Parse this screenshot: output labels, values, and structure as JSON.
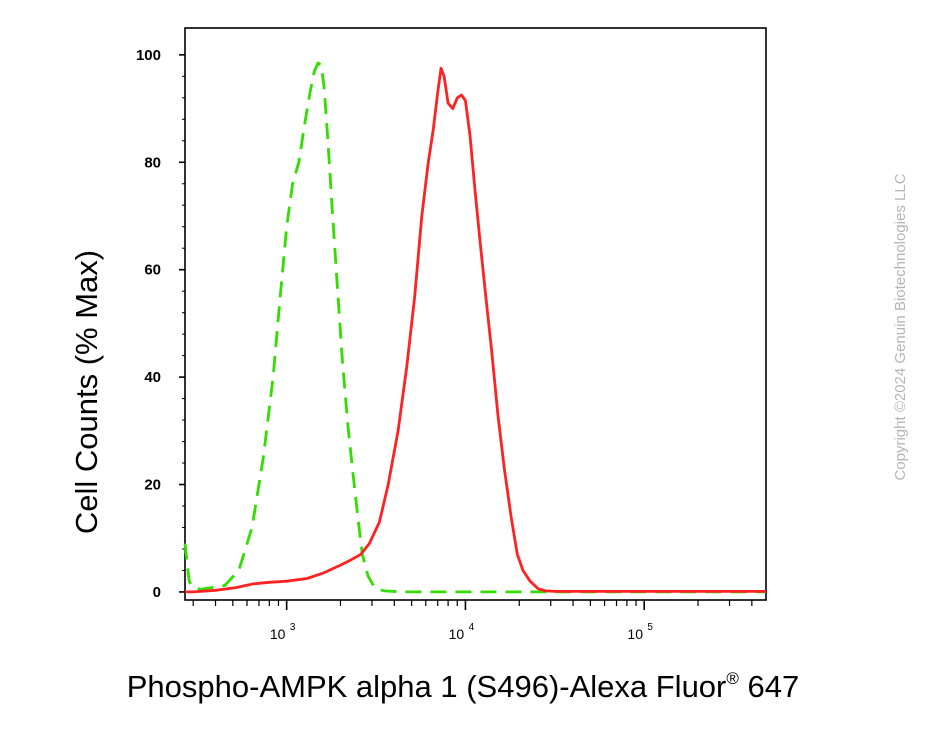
{
  "copyright": "Copyright ©2024 Genuin Biotechnologies LLC",
  "chart_data": {
    "type": "line",
    "title": "",
    "xlabel": "Phospho-AMPK alpha 1 (S496)-Alexa Fluor",
    "xlabel_superscript": "®",
    "xlabel_suffix": " 647",
    "ylabel": "Cell Counts (% Max)",
    "x_scale": "log",
    "xlim": [
      270,
      480000
    ],
    "ylim": [
      -1.5,
      105
    ],
    "y_ticks": [
      0,
      20,
      40,
      60,
      80,
      100
    ],
    "y_tick_labels": [
      "0",
      "20",
      "40",
      "60",
      "80",
      "100"
    ],
    "x_major_ticks": [
      1000,
      10000,
      100000
    ],
    "x_tick_labels": [
      {
        "base": "10",
        "exp": "3"
      },
      {
        "base": "10",
        "exp": "4"
      },
      {
        "base": "10",
        "exp": "5"
      }
    ],
    "grid": false,
    "series": [
      {
        "color": "#33dd00",
        "style": "dashed",
        "x": [
          270,
          285,
          300,
          330,
          380,
          450,
          540,
          640,
          740,
          840,
          920,
          1000,
          1080,
          1170,
          1260,
          1350,
          1430,
          1500,
          1560,
          1620,
          1700,
          1800,
          1920,
          2050,
          2200,
          2350,
          2500,
          2650,
          2850,
          3100,
          3500,
          4500,
          10000,
          30000,
          100000,
          480000
        ],
        "y": [
          9,
          2,
          0.8,
          0.5,
          0.8,
          1.2,
          4,
          12,
          25,
          40,
          55,
          68,
          76,
          80,
          87,
          93,
          97,
          98.5,
          98,
          94,
          84,
          71,
          57,
          43,
          31,
          22,
          14,
          7,
          3,
          0.8,
          0.2,
          0,
          0,
          0,
          0,
          0
        ]
      },
      {
        "color": "#ff2222",
        "style": "solid",
        "x": [
          270,
          300,
          400,
          520,
          650,
          800,
          1000,
          1300,
          1600,
          2000,
          2300,
          2600,
          2900,
          3300,
          3700,
          4200,
          4700,
          5200,
          5700,
          6200,
          6600,
          7000,
          7300,
          7600,
          8000,
          8500,
          9000,
          9500,
          10000,
          10600,
          11300,
          12100,
          13000,
          14000,
          15200,
          16500,
          18000,
          19500,
          21000,
          23000,
          25500,
          28000,
          32000,
          40000,
          60000,
          100000,
          200000,
          480000
        ],
        "y": [
          0,
          0,
          0.3,
          0.8,
          1.5,
          1.8,
          2,
          2.5,
          3.5,
          5,
          6,
          7,
          9,
          13,
          20,
          30,
          42,
          55,
          70,
          80,
          86,
          93,
          97.5,
          96,
          91,
          90,
          92,
          92.5,
          91.5,
          85,
          75,
          65,
          55,
          45,
          33,
          23,
          14,
          7,
          4,
          2,
          0.6,
          0.2,
          0.1,
          0.1,
          0.1,
          0.1,
          0.1,
          0.1
        ]
      }
    ]
  }
}
